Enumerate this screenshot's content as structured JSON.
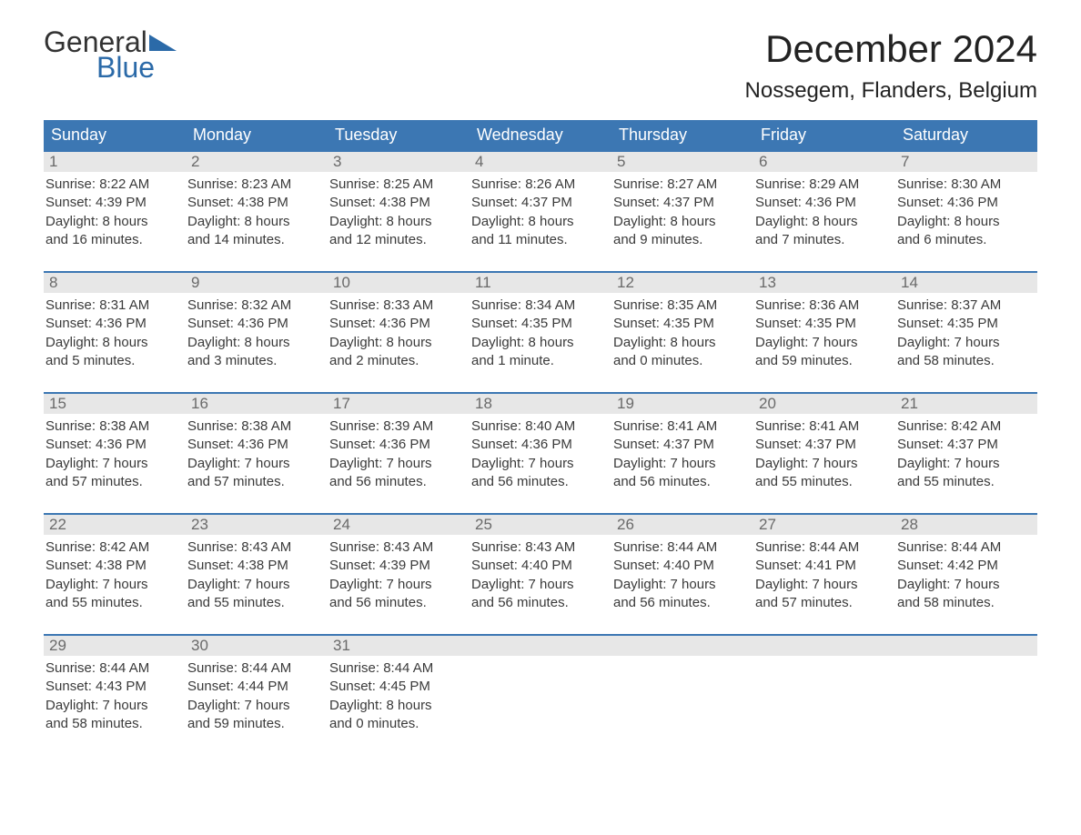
{
  "logo": {
    "word1": "General",
    "word2": "Blue",
    "flag_color": "#2b6aa8",
    "text_gray": "#333333"
  },
  "title": "December 2024",
  "location": "Nossegem, Flanders, Belgium",
  "colors": {
    "header_bg": "#3c77b3",
    "header_text": "#ffffff",
    "daynum_bg": "#e7e7e7",
    "daynum_text": "#6a6a6a",
    "body_text": "#3a3a3a",
    "row_border": "#3c77b3",
    "page_bg": "#ffffff"
  },
  "weekdays": [
    "Sunday",
    "Monday",
    "Tuesday",
    "Wednesday",
    "Thursday",
    "Friday",
    "Saturday"
  ],
  "weeks": [
    [
      {
        "n": "1",
        "sr": "Sunrise: 8:22 AM",
        "ss": "Sunset: 4:39 PM",
        "d1": "Daylight: 8 hours",
        "d2": "and 16 minutes."
      },
      {
        "n": "2",
        "sr": "Sunrise: 8:23 AM",
        "ss": "Sunset: 4:38 PM",
        "d1": "Daylight: 8 hours",
        "d2": "and 14 minutes."
      },
      {
        "n": "3",
        "sr": "Sunrise: 8:25 AM",
        "ss": "Sunset: 4:38 PM",
        "d1": "Daylight: 8 hours",
        "d2": "and 12 minutes."
      },
      {
        "n": "4",
        "sr": "Sunrise: 8:26 AM",
        "ss": "Sunset: 4:37 PM",
        "d1": "Daylight: 8 hours",
        "d2": "and 11 minutes."
      },
      {
        "n": "5",
        "sr": "Sunrise: 8:27 AM",
        "ss": "Sunset: 4:37 PM",
        "d1": "Daylight: 8 hours",
        "d2": "and 9 minutes."
      },
      {
        "n": "6",
        "sr": "Sunrise: 8:29 AM",
        "ss": "Sunset: 4:36 PM",
        "d1": "Daylight: 8 hours",
        "d2": "and 7 minutes."
      },
      {
        "n": "7",
        "sr": "Sunrise: 8:30 AM",
        "ss": "Sunset: 4:36 PM",
        "d1": "Daylight: 8 hours",
        "d2": "and 6 minutes."
      }
    ],
    [
      {
        "n": "8",
        "sr": "Sunrise: 8:31 AM",
        "ss": "Sunset: 4:36 PM",
        "d1": "Daylight: 8 hours",
        "d2": "and 5 minutes."
      },
      {
        "n": "9",
        "sr": "Sunrise: 8:32 AM",
        "ss": "Sunset: 4:36 PM",
        "d1": "Daylight: 8 hours",
        "d2": "and 3 minutes."
      },
      {
        "n": "10",
        "sr": "Sunrise: 8:33 AM",
        "ss": "Sunset: 4:36 PM",
        "d1": "Daylight: 8 hours",
        "d2": "and 2 minutes."
      },
      {
        "n": "11",
        "sr": "Sunrise: 8:34 AM",
        "ss": "Sunset: 4:35 PM",
        "d1": "Daylight: 8 hours",
        "d2": "and 1 minute."
      },
      {
        "n": "12",
        "sr": "Sunrise: 8:35 AM",
        "ss": "Sunset: 4:35 PM",
        "d1": "Daylight: 8 hours",
        "d2": "and 0 minutes."
      },
      {
        "n": "13",
        "sr": "Sunrise: 8:36 AM",
        "ss": "Sunset: 4:35 PM",
        "d1": "Daylight: 7 hours",
        "d2": "and 59 minutes."
      },
      {
        "n": "14",
        "sr": "Sunrise: 8:37 AM",
        "ss": "Sunset: 4:35 PM",
        "d1": "Daylight: 7 hours",
        "d2": "and 58 minutes."
      }
    ],
    [
      {
        "n": "15",
        "sr": "Sunrise: 8:38 AM",
        "ss": "Sunset: 4:36 PM",
        "d1": "Daylight: 7 hours",
        "d2": "and 57 minutes."
      },
      {
        "n": "16",
        "sr": "Sunrise: 8:38 AM",
        "ss": "Sunset: 4:36 PM",
        "d1": "Daylight: 7 hours",
        "d2": "and 57 minutes."
      },
      {
        "n": "17",
        "sr": "Sunrise: 8:39 AM",
        "ss": "Sunset: 4:36 PM",
        "d1": "Daylight: 7 hours",
        "d2": "and 56 minutes."
      },
      {
        "n": "18",
        "sr": "Sunrise: 8:40 AM",
        "ss": "Sunset: 4:36 PM",
        "d1": "Daylight: 7 hours",
        "d2": "and 56 minutes."
      },
      {
        "n": "19",
        "sr": "Sunrise: 8:41 AM",
        "ss": "Sunset: 4:37 PM",
        "d1": "Daylight: 7 hours",
        "d2": "and 56 minutes."
      },
      {
        "n": "20",
        "sr": "Sunrise: 8:41 AM",
        "ss": "Sunset: 4:37 PM",
        "d1": "Daylight: 7 hours",
        "d2": "and 55 minutes."
      },
      {
        "n": "21",
        "sr": "Sunrise: 8:42 AM",
        "ss": "Sunset: 4:37 PM",
        "d1": "Daylight: 7 hours",
        "d2": "and 55 minutes."
      }
    ],
    [
      {
        "n": "22",
        "sr": "Sunrise: 8:42 AM",
        "ss": "Sunset: 4:38 PM",
        "d1": "Daylight: 7 hours",
        "d2": "and 55 minutes."
      },
      {
        "n": "23",
        "sr": "Sunrise: 8:43 AM",
        "ss": "Sunset: 4:38 PM",
        "d1": "Daylight: 7 hours",
        "d2": "and 55 minutes."
      },
      {
        "n": "24",
        "sr": "Sunrise: 8:43 AM",
        "ss": "Sunset: 4:39 PM",
        "d1": "Daylight: 7 hours",
        "d2": "and 56 minutes."
      },
      {
        "n": "25",
        "sr": "Sunrise: 8:43 AM",
        "ss": "Sunset: 4:40 PM",
        "d1": "Daylight: 7 hours",
        "d2": "and 56 minutes."
      },
      {
        "n": "26",
        "sr": "Sunrise: 8:44 AM",
        "ss": "Sunset: 4:40 PM",
        "d1": "Daylight: 7 hours",
        "d2": "and 56 minutes."
      },
      {
        "n": "27",
        "sr": "Sunrise: 8:44 AM",
        "ss": "Sunset: 4:41 PM",
        "d1": "Daylight: 7 hours",
        "d2": "and 57 minutes."
      },
      {
        "n": "28",
        "sr": "Sunrise: 8:44 AM",
        "ss": "Sunset: 4:42 PM",
        "d1": "Daylight: 7 hours",
        "d2": "and 58 minutes."
      }
    ],
    [
      {
        "n": "29",
        "sr": "Sunrise: 8:44 AM",
        "ss": "Sunset: 4:43 PM",
        "d1": "Daylight: 7 hours",
        "d2": "and 58 minutes."
      },
      {
        "n": "30",
        "sr": "Sunrise: 8:44 AM",
        "ss": "Sunset: 4:44 PM",
        "d1": "Daylight: 7 hours",
        "d2": "and 59 minutes."
      },
      {
        "n": "31",
        "sr": "Sunrise: 8:44 AM",
        "ss": "Sunset: 4:45 PM",
        "d1": "Daylight: 8 hours",
        "d2": "and 0 minutes."
      },
      {
        "n": "",
        "sr": "",
        "ss": "",
        "d1": "",
        "d2": ""
      },
      {
        "n": "",
        "sr": "",
        "ss": "",
        "d1": "",
        "d2": ""
      },
      {
        "n": "",
        "sr": "",
        "ss": "",
        "d1": "",
        "d2": ""
      },
      {
        "n": "",
        "sr": "",
        "ss": "",
        "d1": "",
        "d2": ""
      }
    ]
  ]
}
